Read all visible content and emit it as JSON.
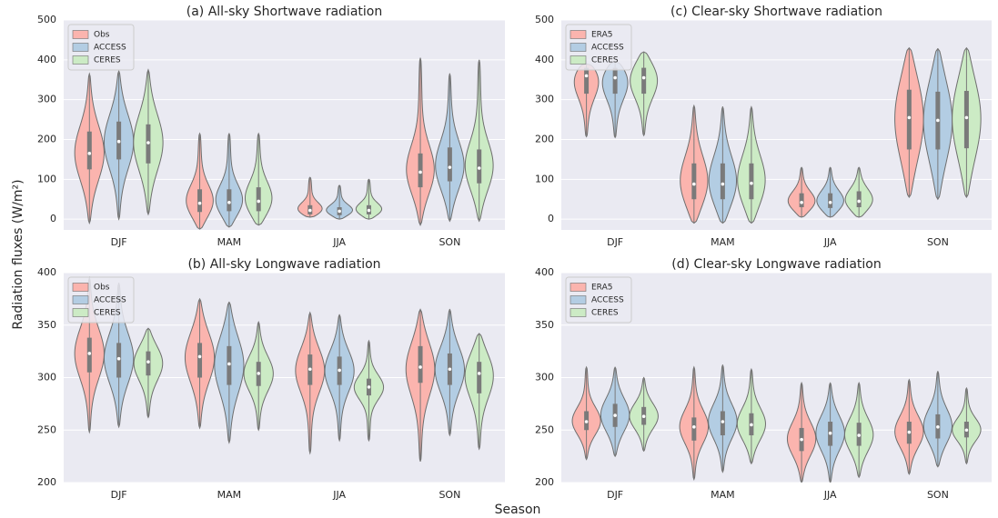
{
  "ylabel": "Radiation fluxes (W/m²)",
  "xlabel": "Season",
  "chart_data": [
    {
      "type": "violin",
      "title": "(a) All-sky Shortwave radiation",
      "categories": [
        "DJF",
        "MAM",
        "JJA",
        "SON"
      ],
      "ylim": [
        -27,
        500
      ],
      "yticks": [
        0,
        100,
        200,
        300,
        400,
        500
      ],
      "grid": true,
      "legend": "upper left",
      "series": [
        {
          "name": "Obs",
          "color": "#fbb4ae",
          "min": [
            -10,
            -25,
            5,
            -15
          ],
          "q1": [
            125,
            18,
            12,
            80
          ],
          "median": [
            165,
            40,
            22,
            118
          ],
          "q3": [
            220,
            75,
            35,
            165
          ],
          "max": [
            365,
            215,
            105,
            405
          ]
        },
        {
          "name": "ACCESS",
          "color": "#b3cde3",
          "min": [
            0,
            -20,
            0,
            -5
          ],
          "q1": [
            150,
            20,
            10,
            95
          ],
          "median": [
            195,
            42,
            20,
            130
          ],
          "q3": [
            245,
            75,
            30,
            180
          ],
          "max": [
            372,
            215,
            85,
            365
          ]
        },
        {
          "name": "CERES",
          "color": "#ccebc5",
          "min": [
            12,
            -15,
            0,
            -5
          ],
          "q1": [
            140,
            20,
            12,
            90
          ],
          "median": [
            192,
            45,
            22,
            128
          ],
          "q3": [
            238,
            80,
            35,
            175
          ],
          "max": [
            375,
            215,
            100,
            400
          ]
        }
      ]
    },
    {
      "type": "violin",
      "title": "(b) All-sky Longwave radiation",
      "categories": [
        "DJF",
        "MAM",
        "JJA",
        "SON"
      ],
      "ylim": [
        200,
        400
      ],
      "yticks": [
        200,
        250,
        300,
        350,
        400
      ],
      "grid": true,
      "legend": "upper left",
      "series": [
        {
          "name": "Obs",
          "color": "#fbb4ae",
          "min": [
            248,
            252,
            228,
            220
          ],
          "q1": [
            305,
            300,
            293,
            295
          ],
          "median": [
            323,
            320,
            308,
            310
          ],
          "q3": [
            338,
            333,
            322,
            330
          ],
          "max": [
            395,
            375,
            362,
            365
          ]
        },
        {
          "name": "ACCESS",
          "color": "#b3cde3",
          "min": [
            253,
            238,
            240,
            245
          ],
          "q1": [
            300,
            293,
            293,
            293
          ],
          "median": [
            318,
            313,
            307,
            308
          ],
          "q3": [
            333,
            330,
            320,
            323
          ],
          "max": [
            390,
            372,
            360,
            365
          ]
        },
        {
          "name": "CERES",
          "color": "#ccebc5",
          "min": [
            262,
            250,
            240,
            232
          ],
          "q1": [
            302,
            292,
            283,
            285
          ],
          "median": [
            315,
            304,
            291,
            304
          ],
          "q3": [
            325,
            315,
            299,
            315
          ],
          "max": [
            347,
            353,
            335,
            342
          ]
        }
      ]
    },
    {
      "type": "violin",
      "title": "(c) Clear-sky Shortwave radiation",
      "categories": [
        "DJF",
        "MAM",
        "JJA",
        "SON"
      ],
      "ylim": [
        -27,
        500
      ],
      "yticks": [
        0,
        100,
        200,
        300,
        400,
        500
      ],
      "grid": true,
      "legend": "upper left",
      "series": [
        {
          "name": "ERA5",
          "color": "#fbb4ae",
          "min": [
            207,
            -10,
            5,
            55
          ],
          "q1": [
            315,
            50,
            30,
            175
          ],
          "median": [
            360,
            88,
            42,
            255
          ],
          "q3": [
            380,
            140,
            65,
            325
          ],
          "max": [
            390,
            285,
            130,
            430
          ]
        },
        {
          "name": "ACCESS",
          "color": "#b3cde3",
          "min": [
            205,
            -10,
            5,
            50
          ],
          "q1": [
            315,
            50,
            28,
            175
          ],
          "median": [
            355,
            88,
            42,
            248
          ],
          "q3": [
            380,
            140,
            65,
            320
          ],
          "max": [
            395,
            282,
            130,
            428
          ]
        },
        {
          "name": "CERES",
          "color": "#ccebc5",
          "min": [
            210,
            -10,
            5,
            55
          ],
          "q1": [
            315,
            50,
            30,
            178
          ],
          "median": [
            355,
            90,
            45,
            255
          ],
          "q3": [
            380,
            140,
            70,
            322
          ],
          "max": [
            420,
            282,
            130,
            430
          ]
        }
      ]
    },
    {
      "type": "violin",
      "title": "(d) Clear-sky Longwave radiation",
      "categories": [
        "DJF",
        "MAM",
        "JJA",
        "SON"
      ],
      "ylim": [
        200,
        400
      ],
      "yticks": [
        200,
        250,
        300,
        350,
        400
      ],
      "grid": true,
      "legend": "upper left",
      "series": [
        {
          "name": "ERA5",
          "color": "#fbb4ae",
          "min": [
            222,
            203,
            200,
            208
          ],
          "q1": [
            250,
            240,
            230,
            237
          ],
          "median": [
            258,
            253,
            241,
            248
          ],
          "q3": [
            268,
            262,
            252,
            258
          ],
          "max": [
            310,
            310,
            295,
            298
          ]
        },
        {
          "name": "ACCESS",
          "color": "#b3cde3",
          "min": [
            225,
            210,
            200,
            215
          ],
          "q1": [
            253,
            245,
            235,
            242
          ],
          "median": [
            264,
            258,
            247,
            253
          ],
          "q3": [
            275,
            268,
            258,
            265
          ],
          "max": [
            310,
            312,
            295,
            306
          ]
        },
        {
          "name": "CERES",
          "color": "#ccebc5",
          "min": [
            230,
            218,
            205,
            218
          ],
          "q1": [
            255,
            245,
            235,
            243
          ],
          "median": [
            263,
            255,
            245,
            250
          ],
          "q3": [
            272,
            266,
            257,
            258
          ],
          "max": [
            300,
            308,
            295,
            290
          ]
        }
      ]
    }
  ]
}
